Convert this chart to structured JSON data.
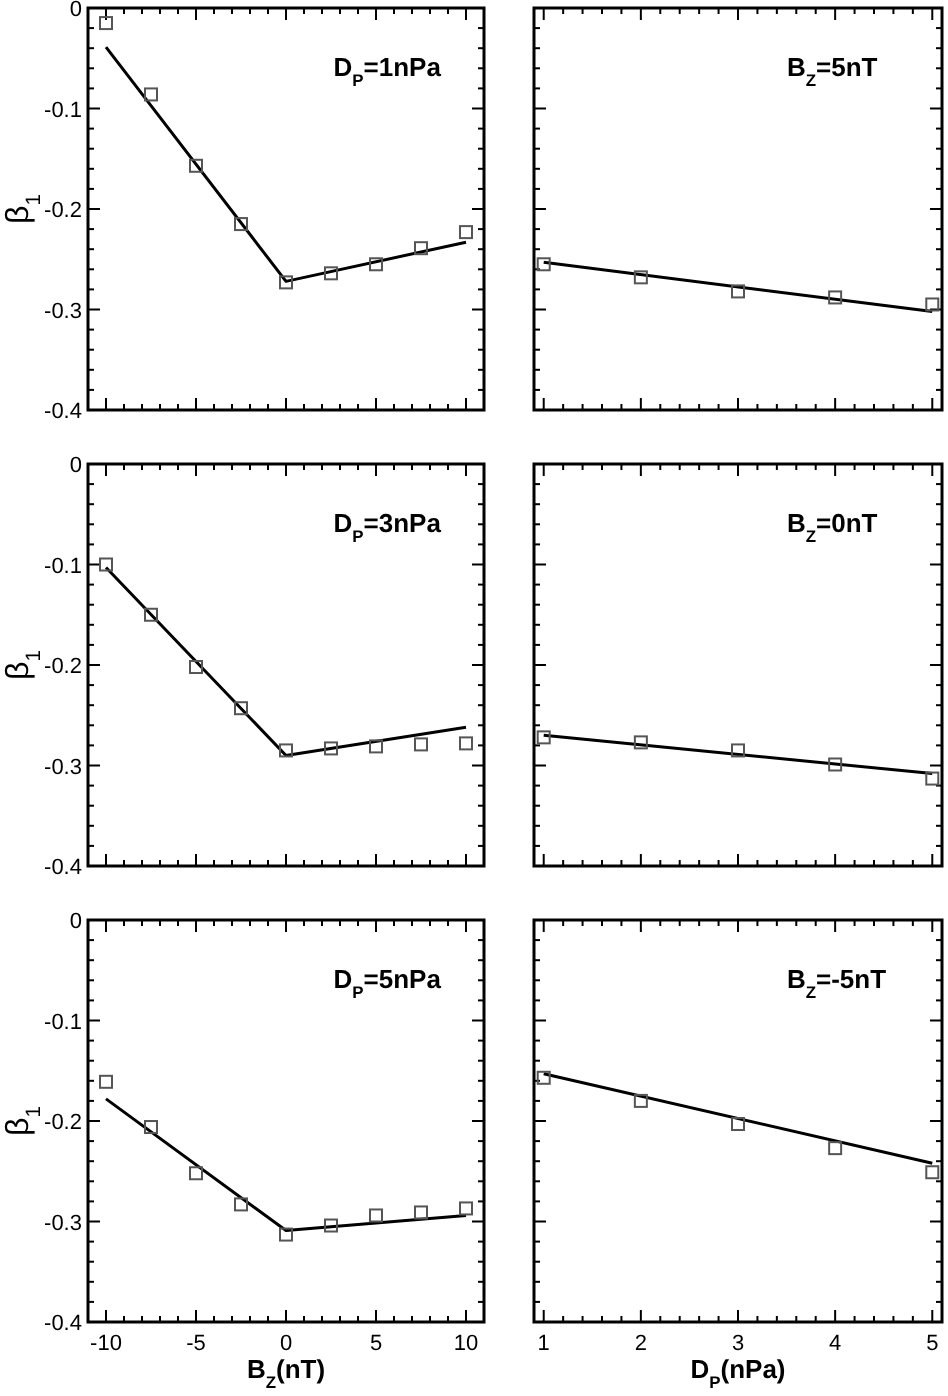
{
  "chart_data": [
    {
      "type": "scatter",
      "annotations": [
        "D$_{P}$=1nPa"
      ],
      "ylabel": "β$_{1}$",
      "tick_labels": "y",
      "xlim": [
        -11,
        11
      ],
      "ylim": [
        -0.4,
        0
      ],
      "xticks": [
        -10,
        {
          "value": -9,
          "label": null
        },
        {
          "value": -8,
          "label": null
        },
        {
          "value": -7,
          "label": null
        },
        {
          "value": -6,
          "label": null
        },
        -5,
        {
          "value": -4,
          "label": null
        },
        {
          "value": -3,
          "label": null
        },
        {
          "value": -2,
          "label": null
        },
        {
          "value": -1,
          "label": null
        },
        0,
        {
          "value": 1,
          "label": null
        },
        {
          "value": 2,
          "label": null
        },
        {
          "value": 3,
          "label": null
        },
        {
          "value": 4,
          "label": null
        },
        5,
        {
          "value": 6,
          "label": null
        },
        {
          "value": 7,
          "label": null
        },
        {
          "value": 8,
          "label": null
        },
        {
          "value": 9,
          "label": null
        },
        10
      ],
      "yticks": [
        0,
        {
          "value": -0.02,
          "label": null
        },
        {
          "value": -0.04,
          "label": null
        },
        {
          "value": -0.06,
          "label": null
        },
        {
          "value": -0.08,
          "label": null
        },
        -0.1,
        {
          "value": -0.12,
          "label": null
        },
        {
          "value": -0.14,
          "label": null
        },
        {
          "value": -0.16,
          "label": null
        },
        {
          "value": -0.18,
          "label": null
        },
        -0.2,
        {
          "value": -0.22,
          "label": null
        },
        {
          "value": -0.24,
          "label": null
        },
        {
          "value": -0.26,
          "label": null
        },
        {
          "value": -0.28,
          "label": null
        },
        -0.3,
        {
          "value": -0.32,
          "label": null
        },
        {
          "value": -0.34,
          "label": null
        },
        {
          "value": -0.36,
          "label": null
        },
        {
          "value": -0.38,
          "label": null
        },
        -0.4
      ],
      "series": [
        {
          "type": "scatter",
          "marker": "square",
          "color": "#555555",
          "x": [
            -10,
            -7.5,
            -5,
            -2.5,
            0,
            2.5,
            5,
            7.5,
            10
          ],
          "values": [
            -0.015,
            -0.086,
            -0.157,
            -0.215,
            -0.273,
            -0.264,
            -0.255,
            -0.239,
            -0.223
          ]
        },
        {
          "type": "line",
          "color": "#000000",
          "x": [
            -10,
            0,
            10
          ],
          "values": [
            -0.039,
            -0.272,
            -0.233
          ]
        }
      ]
    },
    {
      "type": "scatter",
      "annotations": [
        "B$_{Z}$=5nT"
      ],
      "tick_labels": false,
      "xlim": [
        0.9,
        5.1
      ],
      "ylim": [
        -0.4,
        0
      ],
      "xticks": [
        1,
        {
          "value": 1.2,
          "label": null
        },
        {
          "value": 1.4,
          "label": null
        },
        {
          "value": 1.6,
          "label": null
        },
        {
          "value": 1.8,
          "label": null
        },
        2,
        {
          "value": 2.2,
          "label": null
        },
        {
          "value": 2.4,
          "label": null
        },
        {
          "value": 2.6,
          "label": null
        },
        {
          "value": 2.8,
          "label": null
        },
        3,
        {
          "value": 3.2,
          "label": null
        },
        {
          "value": 3.4,
          "label": null
        },
        {
          "value": 3.6,
          "label": null
        },
        {
          "value": 3.8,
          "label": null
        },
        4,
        {
          "value": 4.2,
          "label": null
        },
        {
          "value": 4.4,
          "label": null
        },
        {
          "value": 4.6,
          "label": null
        },
        {
          "value": 4.8,
          "label": null
        },
        5
      ],
      "yticks": [
        0,
        {
          "value": -0.02,
          "label": null
        },
        {
          "value": -0.04,
          "label": null
        },
        {
          "value": -0.06,
          "label": null
        },
        {
          "value": -0.08,
          "label": null
        },
        -0.1,
        {
          "value": -0.12,
          "label": null
        },
        {
          "value": -0.14,
          "label": null
        },
        {
          "value": -0.16,
          "label": null
        },
        {
          "value": -0.18,
          "label": null
        },
        -0.2,
        {
          "value": -0.22,
          "label": null
        },
        {
          "value": -0.24,
          "label": null
        },
        {
          "value": -0.26,
          "label": null
        },
        {
          "value": -0.28,
          "label": null
        },
        -0.3,
        {
          "value": -0.32,
          "label": null
        },
        {
          "value": -0.34,
          "label": null
        },
        {
          "value": -0.36,
          "label": null
        },
        {
          "value": -0.38,
          "label": null
        },
        -0.4
      ],
      "series": [
        {
          "type": "scatter",
          "marker": "square",
          "color": "#555555",
          "x": [
            1,
            2,
            3,
            4,
            5
          ],
          "values": [
            -0.255,
            -0.268,
            -0.282,
            -0.288,
            -0.295
          ]
        },
        {
          "type": "line",
          "color": "#000000",
          "x": [
            1,
            5
          ],
          "values": [
            -0.253,
            -0.302
          ]
        }
      ]
    },
    {
      "type": "scatter",
      "annotations": [
        "D$_{P}$=3nPa"
      ],
      "ylabel": "β$_{1}$",
      "tick_labels": "y",
      "xlim": [
        -11,
        11
      ],
      "ylim": [
        -0.4,
        0
      ],
      "xticks": [
        -10,
        {
          "value": -9,
          "label": null
        },
        {
          "value": -8,
          "label": null
        },
        {
          "value": -7,
          "label": null
        },
        {
          "value": -6,
          "label": null
        },
        -5,
        {
          "value": -4,
          "label": null
        },
        {
          "value": -3,
          "label": null
        },
        {
          "value": -2,
          "label": null
        },
        {
          "value": -1,
          "label": null
        },
        0,
        {
          "value": 1,
          "label": null
        },
        {
          "value": 2,
          "label": null
        },
        {
          "value": 3,
          "label": null
        },
        {
          "value": 4,
          "label": null
        },
        5,
        {
          "value": 6,
          "label": null
        },
        {
          "value": 7,
          "label": null
        },
        {
          "value": 8,
          "label": null
        },
        {
          "value": 9,
          "label": null
        },
        10
      ],
      "yticks": [
        0,
        {
          "value": -0.02,
          "label": null
        },
        {
          "value": -0.04,
          "label": null
        },
        {
          "value": -0.06,
          "label": null
        },
        {
          "value": -0.08,
          "label": null
        },
        -0.1,
        {
          "value": -0.12,
          "label": null
        },
        {
          "value": -0.14,
          "label": null
        },
        {
          "value": -0.16,
          "label": null
        },
        {
          "value": -0.18,
          "label": null
        },
        -0.2,
        {
          "value": -0.22,
          "label": null
        },
        {
          "value": -0.24,
          "label": null
        },
        {
          "value": -0.26,
          "label": null
        },
        {
          "value": -0.28,
          "label": null
        },
        -0.3,
        {
          "value": -0.32,
          "label": null
        },
        {
          "value": -0.34,
          "label": null
        },
        {
          "value": -0.36,
          "label": null
        },
        {
          "value": -0.38,
          "label": null
        },
        -0.4
      ],
      "series": [
        {
          "type": "scatter",
          "marker": "square",
          "color": "#555555",
          "x": [
            -10,
            -7.5,
            -5,
            -2.5,
            0,
            2.5,
            5,
            7.5,
            10
          ],
          "values": [
            -0.1,
            -0.15,
            -0.202,
            -0.243,
            -0.285,
            -0.283,
            -0.281,
            -0.279,
            -0.278
          ]
        },
        {
          "type": "line",
          "color": "#000000",
          "x": [
            -10,
            0,
            10
          ],
          "values": [
            -0.103,
            -0.29,
            -0.262
          ]
        }
      ]
    },
    {
      "type": "scatter",
      "annotations": [
        "B$_{Z}$=0nT"
      ],
      "tick_labels": false,
      "xlim": [
        0.9,
        5.1
      ],
      "ylim": [
        -0.4,
        0
      ],
      "xticks": [
        1,
        {
          "value": 1.2,
          "label": null
        },
        {
          "value": 1.4,
          "label": null
        },
        {
          "value": 1.6,
          "label": null
        },
        {
          "value": 1.8,
          "label": null
        },
        2,
        {
          "value": 2.2,
          "label": null
        },
        {
          "value": 2.4,
          "label": null
        },
        {
          "value": 2.6,
          "label": null
        },
        {
          "value": 2.8,
          "label": null
        },
        3,
        {
          "value": 3.2,
          "label": null
        },
        {
          "value": 3.4,
          "label": null
        },
        {
          "value": 3.6,
          "label": null
        },
        {
          "value": 3.8,
          "label": null
        },
        4,
        {
          "value": 4.2,
          "label": null
        },
        {
          "value": 4.4,
          "label": null
        },
        {
          "value": 4.6,
          "label": null
        },
        {
          "value": 4.8,
          "label": null
        },
        5
      ],
      "yticks": [
        0,
        {
          "value": -0.02,
          "label": null
        },
        {
          "value": -0.04,
          "label": null
        },
        {
          "value": -0.06,
          "label": null
        },
        {
          "value": -0.08,
          "label": null
        },
        -0.1,
        {
          "value": -0.12,
          "label": null
        },
        {
          "value": -0.14,
          "label": null
        },
        {
          "value": -0.16,
          "label": null
        },
        {
          "value": -0.18,
          "label": null
        },
        -0.2,
        {
          "value": -0.22,
          "label": null
        },
        {
          "value": -0.24,
          "label": null
        },
        {
          "value": -0.26,
          "label": null
        },
        {
          "value": -0.28,
          "label": null
        },
        -0.3,
        {
          "value": -0.32,
          "label": null
        },
        {
          "value": -0.34,
          "label": null
        },
        {
          "value": -0.36,
          "label": null
        },
        {
          "value": -0.38,
          "label": null
        },
        -0.4
      ],
      "series": [
        {
          "type": "scatter",
          "marker": "square",
          "color": "#555555",
          "x": [
            1,
            2,
            3,
            4,
            5
          ],
          "values": [
            -0.272,
            -0.277,
            -0.285,
            -0.299,
            -0.313
          ]
        },
        {
          "type": "line",
          "color": "#000000",
          "x": [
            1,
            5
          ],
          "values": [
            -0.27,
            -0.308
          ]
        }
      ]
    },
    {
      "type": "scatter",
      "annotations": [
        "D$_{P}$=5nPa"
      ],
      "ylabel": "β$_{1}$",
      "xlabel": "B$_{Z}$(nT)",
      "xlim": [
        -11,
        11
      ],
      "ylim": [
        -0.4,
        0
      ],
      "xticks": [
        -10,
        {
          "value": -9,
          "label": null
        },
        {
          "value": -8,
          "label": null
        },
        {
          "value": -7,
          "label": null
        },
        {
          "value": -6,
          "label": null
        },
        -5,
        {
          "value": -4,
          "label": null
        },
        {
          "value": -3,
          "label": null
        },
        {
          "value": -2,
          "label": null
        },
        {
          "value": -1,
          "label": null
        },
        0,
        {
          "value": 1,
          "label": null
        },
        {
          "value": 2,
          "label": null
        },
        {
          "value": 3,
          "label": null
        },
        {
          "value": 4,
          "label": null
        },
        5,
        {
          "value": 6,
          "label": null
        },
        {
          "value": 7,
          "label": null
        },
        {
          "value": 8,
          "label": null
        },
        {
          "value": 9,
          "label": null
        },
        10
      ],
      "yticks": [
        0,
        {
          "value": -0.02,
          "label": null
        },
        {
          "value": -0.04,
          "label": null
        },
        {
          "value": -0.06,
          "label": null
        },
        {
          "value": -0.08,
          "label": null
        },
        -0.1,
        {
          "value": -0.12,
          "label": null
        },
        {
          "value": -0.14,
          "label": null
        },
        {
          "value": -0.16,
          "label": null
        },
        {
          "value": -0.18,
          "label": null
        },
        -0.2,
        {
          "value": -0.22,
          "label": null
        },
        {
          "value": -0.24,
          "label": null
        },
        {
          "value": -0.26,
          "label": null
        },
        {
          "value": -0.28,
          "label": null
        },
        -0.3,
        {
          "value": -0.32,
          "label": null
        },
        {
          "value": -0.34,
          "label": null
        },
        {
          "value": -0.36,
          "label": null
        },
        {
          "value": -0.38,
          "label": null
        },
        -0.4
      ],
      "series": [
        {
          "type": "scatter",
          "marker": "square",
          "color": "#555555",
          "x": [
            -10,
            -7.5,
            -5,
            -2.5,
            0,
            2.5,
            5,
            7.5,
            10
          ],
          "values": [
            -0.161,
            -0.206,
            -0.252,
            -0.283,
            -0.313,
            -0.304,
            -0.294,
            -0.291,
            -0.287
          ]
        },
        {
          "type": "line",
          "color": "#000000",
          "x": [
            -10,
            0,
            10
          ],
          "values": [
            -0.178,
            -0.309,
            -0.294
          ]
        }
      ]
    },
    {
      "type": "scatter",
      "annotations": [
        "B$_{Z}$=-5nT"
      ],
      "xlabel": "D$_{P}$(nPa)",
      "tick_labels": "x",
      "xlim": [
        0.9,
        5.1
      ],
      "ylim": [
        -0.4,
        0
      ],
      "xticks": [
        1,
        {
          "value": 1.2,
          "label": null
        },
        {
          "value": 1.4,
          "label": null
        },
        {
          "value": 1.6,
          "label": null
        },
        {
          "value": 1.8,
          "label": null
        },
        2,
        {
          "value": 2.2,
          "label": null
        },
        {
          "value": 2.4,
          "label": null
        },
        {
          "value": 2.6,
          "label": null
        },
        {
          "value": 2.8,
          "label": null
        },
        3,
        {
          "value": 3.2,
          "label": null
        },
        {
          "value": 3.4,
          "label": null
        },
        {
          "value": 3.6,
          "label": null
        },
        {
          "value": 3.8,
          "label": null
        },
        4,
        {
          "value": 4.2,
          "label": null
        },
        {
          "value": 4.4,
          "label": null
        },
        {
          "value": 4.6,
          "label": null
        },
        {
          "value": 4.8,
          "label": null
        },
        5
      ],
      "yticks": [
        0,
        {
          "value": -0.02,
          "label": null
        },
        {
          "value": -0.04,
          "label": null
        },
        {
          "value": -0.06,
          "label": null
        },
        {
          "value": -0.08,
          "label": null
        },
        -0.1,
        {
          "value": -0.12,
          "label": null
        },
        {
          "value": -0.14,
          "label": null
        },
        {
          "value": -0.16,
          "label": null
        },
        {
          "value": -0.18,
          "label": null
        },
        -0.2,
        {
          "value": -0.22,
          "label": null
        },
        {
          "value": -0.24,
          "label": null
        },
        {
          "value": -0.26,
          "label": null
        },
        {
          "value": -0.28,
          "label": null
        },
        -0.3,
        {
          "value": -0.32,
          "label": null
        },
        {
          "value": -0.34,
          "label": null
        },
        {
          "value": -0.36,
          "label": null
        },
        {
          "value": -0.38,
          "label": null
        },
        -0.4
      ],
      "series": [
        {
          "type": "scatter",
          "marker": "square",
          "color": "#555555",
          "x": [
            1,
            2,
            3,
            4,
            5
          ],
          "values": [
            -0.157,
            -0.18,
            -0.203,
            -0.227,
            -0.251
          ]
        },
        {
          "type": "line",
          "color": "#000000",
          "x": [
            1,
            5
          ],
          "values": [
            -0.153,
            -0.242
          ]
        }
      ]
    }
  ]
}
